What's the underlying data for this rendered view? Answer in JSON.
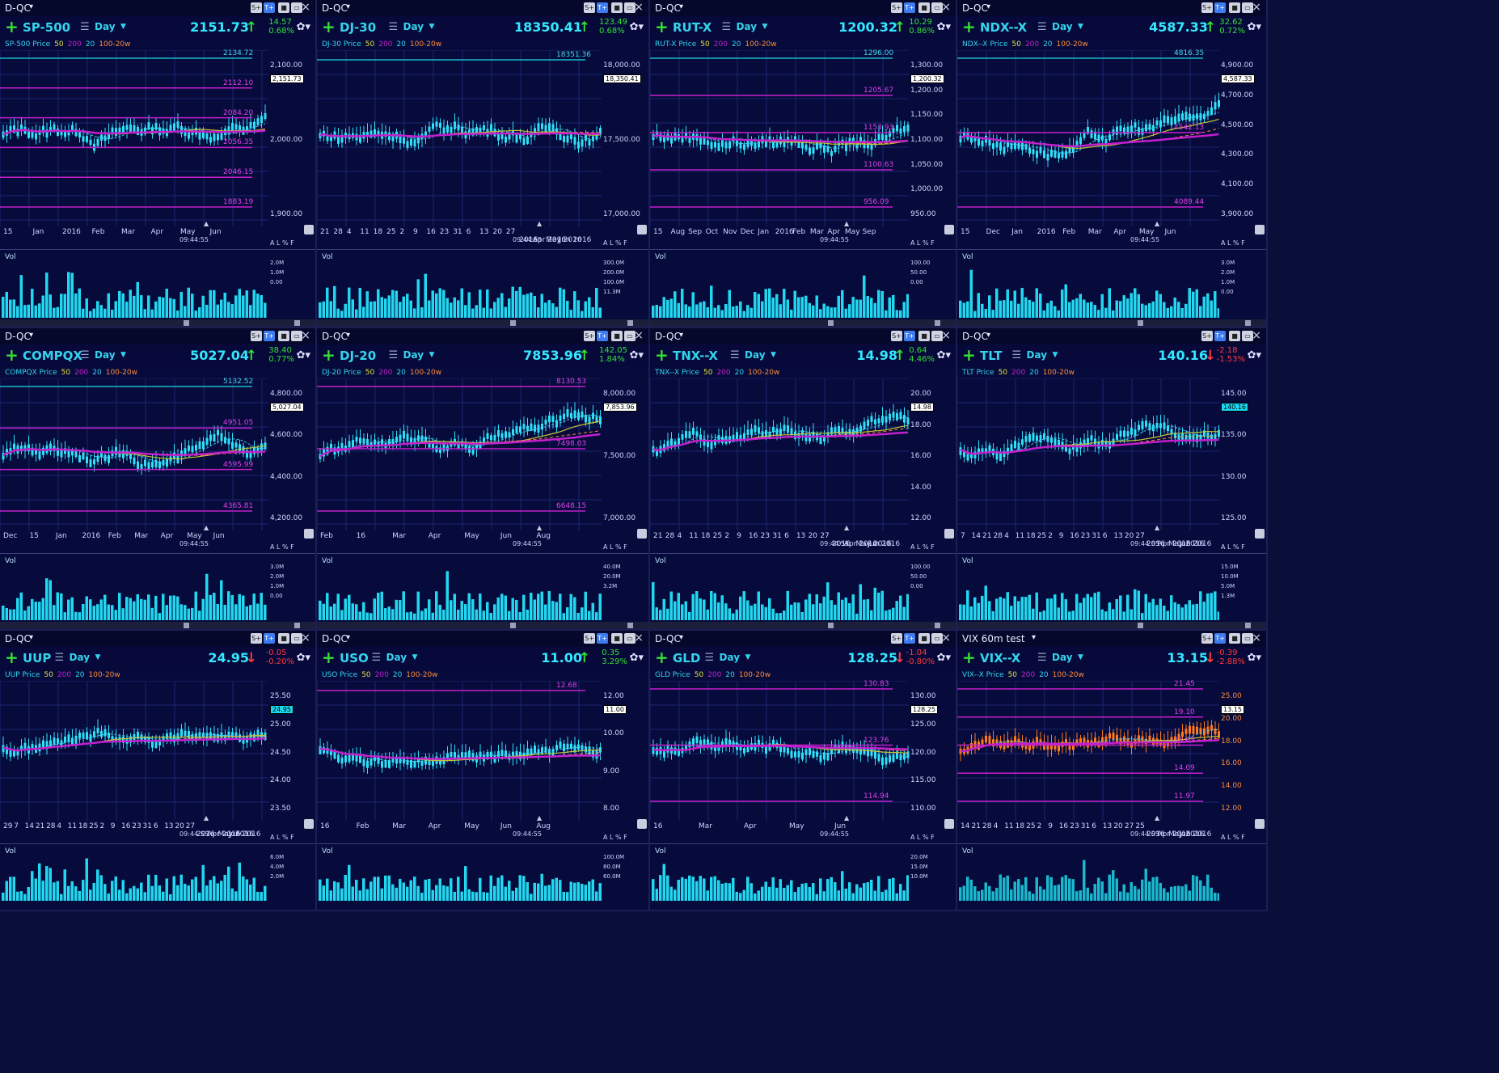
{
  "colors": {
    "bg": "#060b3c",
    "cyan": "#34e8ff",
    "up": "#35e035",
    "down": "#ff3b3b",
    "magenta": "#c41fcc",
    "yellow": "#c8c234",
    "orange": "#ff7a1a",
    "red": "#e01010",
    "teal": "#1ab8cc"
  },
  "common": {
    "timeframe": "Day",
    "legend_price_suffix": " Price",
    "ma50": "50",
    "ma200": "200",
    "ma20": "20",
    "ma100w": "100-20w",
    "clock": "09:44:55",
    "vol_label": "Vol",
    "alpf": "A L % F",
    "btn_s": "S+",
    "btn_t": "T+"
  },
  "panels": [
    {
      "source": "D-QC",
      "symbol": "SP-500",
      "price": "2151.73",
      "chg": "14.57",
      "pct": "0.68%",
      "dir": "up",
      "legend": "SP-500 Price",
      "yticks": [
        "2,100.00",
        "2,000.00",
        "1,900.00"
      ],
      "levels": [
        "2134.72",
        "2112.10",
        "2084.20",
        "2056.35",
        "2046.15",
        "1883.19"
      ],
      "cur": "2,151.73",
      "xlabels": [
        "15",
        "Jan",
        "2016",
        "Feb",
        "Mar",
        "Apr",
        "May",
        "Jun"
      ],
      "vticks": [
        "2.0M",
        "1.0M",
        "0.00"
      ]
    },
    {
      "source": "D-QC",
      "symbol": "DJ-30",
      "price": "18350.41",
      "chg": "123.49",
      "pct": "0.68%",
      "dir": "up",
      "legend": "DJ-30 Price",
      "yticks": [
        "18,000.00",
        "17,500.00",
        "17,000.00"
      ],
      "levels": [
        "18351.36"
      ],
      "cur": "18,350.41",
      "xlabels": [
        "21",
        "28",
        "4",
        "11",
        "18",
        "25",
        "2",
        "9",
        "16",
        "23",
        "31",
        "6",
        "13",
        "20",
        "27",
        "2016",
        "Apr 2016",
        "May 2016",
        "Jun 2016"
      ],
      "vticks": [
        "300.0M",
        "200.0M",
        "100.0M",
        "11.3M"
      ]
    },
    {
      "source": "D-QC",
      "symbol": "RUT-X",
      "price": "1200.32",
      "chg": "10.29",
      "pct": "0.86%",
      "dir": "up",
      "legend": "RUT-X Price",
      "yticks": [
        "1,300.00",
        "1,200.00",
        "1,150.00",
        "1,100.00",
        "1,050.00",
        "1,000.00",
        "950.00"
      ],
      "levels": [
        "1296.00",
        "1205.67",
        "1153.93",
        "1100.63",
        "956.09"
      ],
      "cur": "1,200.32",
      "xlabels": [
        "15",
        "Aug",
        "Sep",
        "Oct",
        "Nov",
        "Dec",
        "Jan",
        "2016",
        "Feb",
        "Mar",
        "Apr",
        "May",
        "Sep"
      ],
      "vticks": [
        "100.00",
        "50.00",
        "0.00"
      ]
    },
    {
      "source": "D-QC",
      "symbol": "NDX--X",
      "price": "4587.33",
      "chg": "32.62",
      "pct": "0.72%",
      "dir": "up",
      "legend": "NDX--X Price",
      "yticks": [
        "4,900.00",
        "4,700.00",
        "4,500.00",
        "4,300.00",
        "4,100.00",
        "3,900.00"
      ],
      "levels": [
        "4816.35",
        "4542.13",
        "4089.44"
      ],
      "cur": "4,587.33",
      "xlabels": [
        "15",
        "Dec",
        "Jan",
        "2016",
        "Feb",
        "Mar",
        "Apr",
        "May",
        "Jun"
      ],
      "vticks": [
        "3.0M",
        "2.0M",
        "1.0M",
        "0.00"
      ]
    },
    {
      "source": "D-QC",
      "symbol": "COMPQX",
      "price": "5027.04",
      "chg": "38.40",
      "pct": "0.77%",
      "dir": "up",
      "legend": "COMPQX Price",
      "yticks": [
        "4,800.00",
        "4,600.00",
        "4,400.00",
        "4,200.00"
      ],
      "levels": [
        "5132.52",
        "4951.05",
        "4595.99",
        "4365.81"
      ],
      "cur": "5,027.04",
      "xlabels": [
        "Dec",
        "15",
        "Jan",
        "2016",
        "Feb",
        "Mar",
        "Apr",
        "May",
        "Jun"
      ],
      "vticks": [
        "3.0M",
        "2.0M",
        "1.0M",
        "0.00"
      ]
    },
    {
      "source": "D-QC",
      "symbol": "DJ-20",
      "price": "7853.96",
      "chg": "142.05",
      "pct": "1.84%",
      "dir": "up",
      "legend": "DJ-20 Price",
      "yticks": [
        "8,000.00",
        "7,500.00",
        "7,000.00"
      ],
      "levels": [
        "8130.53",
        "7498.03",
        "6648.15"
      ],
      "cur": "7,853.96",
      "xlabels": [
        "Feb",
        "16",
        "Mar",
        "Apr",
        "May",
        "Jun",
        "Aug"
      ],
      "vticks": [
        "40.0M",
        "20.0M",
        "3.2M"
      ]
    },
    {
      "source": "D-QC",
      "symbol": "TNX--X",
      "price": "14.98",
      "chg": "0.64",
      "pct": "4.46%",
      "dir": "up",
      "legend": "TNX--X Price",
      "yticks": [
        "20.00",
        "18.00",
        "16.00",
        "14.00",
        "12.00"
      ],
      "levels": [],
      "cur": "14.98",
      "xlabels": [
        "21",
        "28",
        "4",
        "11",
        "18",
        "25",
        "2",
        "9",
        "16",
        "23",
        "31",
        "6",
        "13",
        "20",
        "27",
        "2016",
        "Apr 2016",
        "May 2016",
        "Jun 2016"
      ],
      "vticks": [
        "100.00",
        "50.00",
        "0.00"
      ]
    },
    {
      "source": "D-QC",
      "symbol": "TLT",
      "price": "140.16",
      "chg": "-2.18",
      "pct": "-1.53%",
      "dir": "down",
      "legend": "TLT Price",
      "yticks": [
        "145.00",
        "135.00",
        "130.00",
        "125.00"
      ],
      "levels": [],
      "cur": "140.16",
      "xlabels": [
        "7",
        "14",
        "21",
        "28",
        "4",
        "11",
        "18",
        "25",
        "2",
        "9",
        "16",
        "23",
        "31",
        "6",
        "13",
        "20",
        "27",
        "2016",
        "Apr 2016",
        "May 2016",
        "Jun 2016"
      ],
      "vticks": [
        "15.0M",
        "10.0M",
        "5.0M",
        "1.3M"
      ]
    },
    {
      "source": "D-QC",
      "symbol": "UUP",
      "price": "24.95",
      "chg": "-0.05",
      "pct": "-0.20%",
      "dir": "down",
      "legend": "UUP Price",
      "yticks": [
        "25.50",
        "25.00",
        "24.50",
        "24.00",
        "23.50"
      ],
      "levels": [],
      "cur": "24.95",
      "xlabels": [
        "29",
        "7",
        "14",
        "21",
        "28",
        "4",
        "11",
        "18",
        "25",
        "2",
        "9",
        "16",
        "23",
        "31",
        "6",
        "13",
        "20",
        "27",
        "2016",
        "Apr 2016",
        "May 2016",
        "Jun 2016"
      ],
      "vticks": [
        "6.0M",
        "4.0M",
        "2.0M"
      ]
    },
    {
      "source": "D-QC",
      "symbol": "USO",
      "price": "11.00",
      "chg": "0.35",
      "pct": "3.29%",
      "dir": "up",
      "legend": "USO Price",
      "yticks": [
        "12.00",
        "10.00",
        "9.00",
        "8.00"
      ],
      "levels": [
        "12.68"
      ],
      "cur": "11.00",
      "xlabels": [
        "16",
        "Feb",
        "Mar",
        "Apr",
        "May",
        "Jun",
        "Aug"
      ],
      "vticks": [
        "100.0M",
        "80.0M",
        "60.0M"
      ]
    },
    {
      "source": "D-QC",
      "symbol": "GLD",
      "price": "128.25",
      "chg": "-1.04",
      "pct": "-0.80%",
      "dir": "down",
      "legend": "GLD Price",
      "yticks": [
        "130.00",
        "125.00",
        "120.00",
        "115.00",
        "110.00"
      ],
      "levels": [
        "130.83",
        "123.76",
        "114.94"
      ],
      "cur": "128.25",
      "xlabels": [
        "16",
        "Mar",
        "Apr",
        "May",
        "Jun"
      ],
      "vticks": [
        "20.0M",
        "15.0M",
        "10.0M"
      ]
    },
    {
      "source": "VIX 60m test",
      "symbol": "VIX--X",
      "price": "13.15",
      "chg": "-0.39",
      "pct": "-2.88%",
      "dir": "down",
      "legend": "VIX--X Price",
      "yticks": [
        "25.00",
        "20.00",
        "18.00",
        "16.00",
        "14.00",
        "12.00"
      ],
      "levels": [
        "21.45",
        "19.10",
        "15.65",
        "14.09",
        "11.97"
      ],
      "cur": "13.15",
      "xlabels": [
        "14",
        "21",
        "28",
        "4",
        "11",
        "18",
        "25",
        "2",
        "9",
        "16",
        "23",
        "31",
        "6",
        "13",
        "20",
        "27",
        "25",
        "2016",
        "Apr 2016",
        "May 2016",
        "Jun 2016"
      ],
      "vticks": []
    }
  ]
}
